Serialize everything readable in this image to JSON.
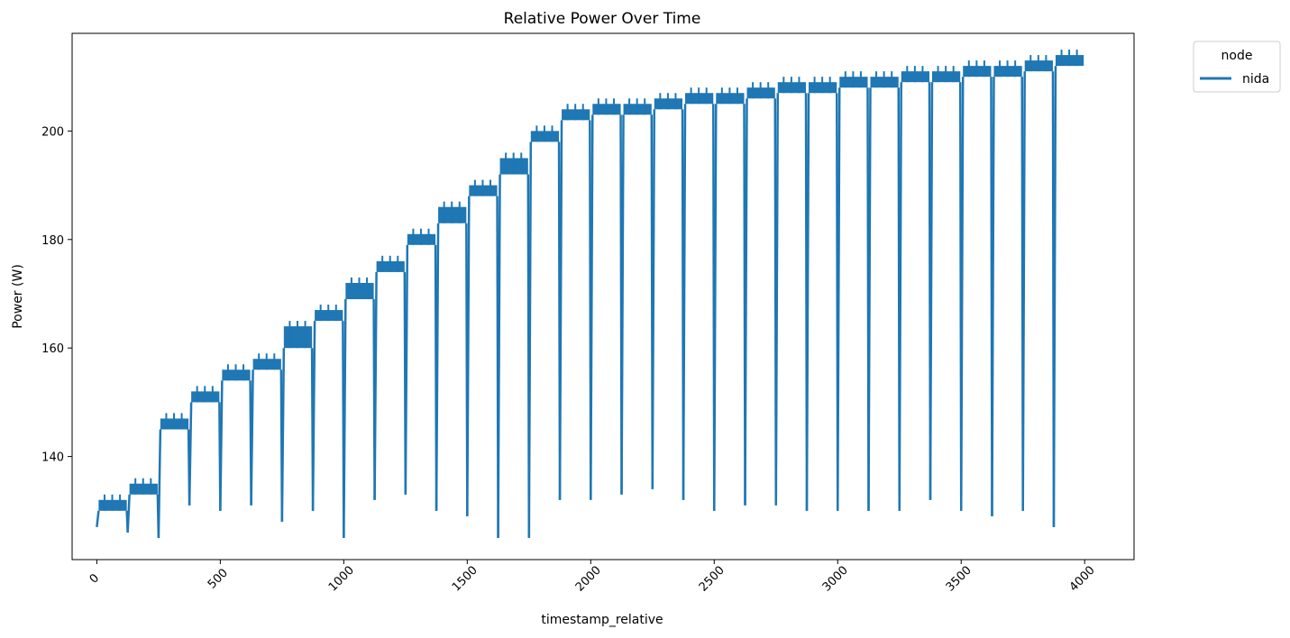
{
  "chart_data": {
    "type": "line",
    "title": "Relative Power Over Time",
    "xlabel": "timestamp_relative",
    "ylabel": "Power (W)",
    "xlim": [
      -100,
      4200
    ],
    "ylim": [
      121,
      218
    ],
    "x_ticks": [
      0,
      500,
      1000,
      1500,
      2000,
      2500,
      3000,
      3500,
      4000
    ],
    "y_ticks": [
      140,
      160,
      180,
      200
    ],
    "grid": false,
    "legend": {
      "title": "node",
      "placement": "upper right outside",
      "entries": [
        "nida"
      ]
    },
    "series": [
      {
        "name": "nida",
        "color": "#1f77b4",
        "segments": [
          {
            "x0": 0,
            "x1": 125,
            "low": 130.0,
            "high": 132.0,
            "dip": 126
          },
          {
            "x0": 125,
            "x1": 250,
            "low": 133.0,
            "high": 135.0,
            "dip": 125
          },
          {
            "x0": 250,
            "x1": 375,
            "low": 145.0,
            "high": 147.0,
            "dip": 131
          },
          {
            "x0": 375,
            "x1": 500,
            "low": 150.0,
            "high": 152.0,
            "dip": 130
          },
          {
            "x0": 500,
            "x1": 625,
            "low": 154.0,
            "high": 156.0,
            "dip": 131
          },
          {
            "x0": 625,
            "x1": 750,
            "low": 156.0,
            "high": 158.0,
            "dip": 128
          },
          {
            "x0": 750,
            "x1": 875,
            "low": 160.0,
            "high": 164.0,
            "dip": 130
          },
          {
            "x0": 875,
            "x1": 1000,
            "low": 165.0,
            "high": 167.0,
            "dip": 125
          },
          {
            "x0": 1000,
            "x1": 1125,
            "low": 169.0,
            "high": 172.0,
            "dip": 132
          },
          {
            "x0": 1125,
            "x1": 1250,
            "low": 174.0,
            "high": 176.0,
            "dip": 133
          },
          {
            "x0": 1250,
            "x1": 1375,
            "low": 179.0,
            "high": 181.0,
            "dip": 130
          },
          {
            "x0": 1375,
            "x1": 1500,
            "low": 183.0,
            "high": 186.0,
            "dip": 129
          },
          {
            "x0": 1500,
            "x1": 1625,
            "low": 188.0,
            "high": 190.0,
            "dip": 125
          },
          {
            "x0": 1625,
            "x1": 1750,
            "low": 192.0,
            "high": 195.0,
            "dip": 125
          },
          {
            "x0": 1750,
            "x1": 1875,
            "low": 198.0,
            "high": 200.0,
            "dip": 132
          },
          {
            "x0": 1875,
            "x1": 2000,
            "low": 202.0,
            "high": 204.0,
            "dip": 132
          },
          {
            "x0": 2000,
            "x1": 2125,
            "low": 203.0,
            "high": 205.0,
            "dip": 133
          },
          {
            "x0": 2125,
            "x1": 2250,
            "low": 203.0,
            "high": 205.0,
            "dip": 134
          },
          {
            "x0": 2250,
            "x1": 2375,
            "low": 204.0,
            "high": 206.0,
            "dip": 132
          },
          {
            "x0": 2375,
            "x1": 2500,
            "low": 205.0,
            "high": 207.0,
            "dip": 130
          },
          {
            "x0": 2500,
            "x1": 2625,
            "low": 205.0,
            "high": 207.0,
            "dip": 131
          },
          {
            "x0": 2625,
            "x1": 2750,
            "low": 206.0,
            "high": 208.0,
            "dip": 131
          },
          {
            "x0": 2750,
            "x1": 2875,
            "low": 207.0,
            "high": 209.0,
            "dip": 130
          },
          {
            "x0": 2875,
            "x1": 3000,
            "low": 207.0,
            "high": 209.0,
            "dip": 130
          },
          {
            "x0": 3000,
            "x1": 3125,
            "low": 208.0,
            "high": 210.0,
            "dip": 130
          },
          {
            "x0": 3125,
            "x1": 3250,
            "low": 208.0,
            "high": 210.0,
            "dip": 130
          },
          {
            "x0": 3250,
            "x1": 3375,
            "low": 209.0,
            "high": 211.0,
            "dip": 132
          },
          {
            "x0": 3375,
            "x1": 3500,
            "low": 209.0,
            "high": 211.0,
            "dip": 130
          },
          {
            "x0": 3500,
            "x1": 3625,
            "low": 210.0,
            "high": 212.0,
            "dip": 129
          },
          {
            "x0": 3625,
            "x1": 3750,
            "low": 210.0,
            "high": 212.0,
            "dip": 130
          },
          {
            "x0": 3750,
            "x1": 3875,
            "low": 211.0,
            "high": 213.0,
            "dip": 127
          },
          {
            "x0": 3875,
            "x1": 4000,
            "low": 212.0,
            "high": 214.0,
            "dip": null
          }
        ]
      }
    ]
  }
}
